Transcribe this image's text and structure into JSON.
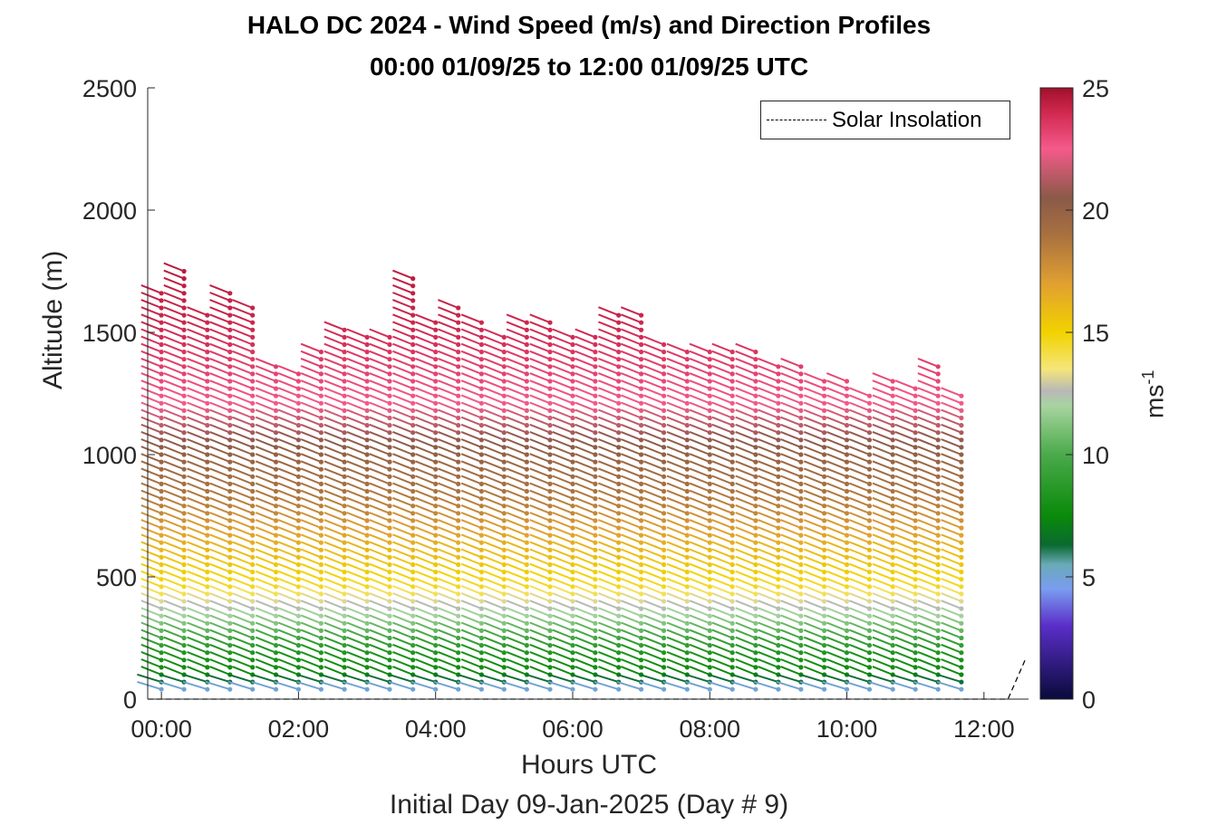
{
  "title_line1": "HALO DC 2024 - Wind Speed (m/s) and Direction Profiles",
  "title_line2": "00:00 01/09/25 to 12:00 01/09/25  UTC",
  "xlabel": "Hours UTC",
  "subtitle": "Initial Day 09-Jan-2025 (Day # 9)",
  "ylabel": "Altitude (m)",
  "legend_label": "Solar Insolation",
  "colorbar": {
    "label": "ms",
    "label_exponent": "-1",
    "ticks": [
      "0",
      "5",
      "10",
      "15",
      "20",
      "25"
    ],
    "range": [
      0,
      25
    ],
    "stops": [
      {
        "v": 0,
        "c": "#0a0a3a"
      },
      {
        "v": 3,
        "c": "#5a2ec8"
      },
      {
        "v": 4.5,
        "c": "#7a9cf0"
      },
      {
        "v": 5.5,
        "c": "#6aaab8"
      },
      {
        "v": 6.3,
        "c": "#0a6a30"
      },
      {
        "v": 7.5,
        "c": "#0a8a0a"
      },
      {
        "v": 10,
        "c": "#4aaa4a"
      },
      {
        "v": 12,
        "c": "#a8d4a0"
      },
      {
        "v": 12.6,
        "c": "#b8b8b8"
      },
      {
        "v": 13.5,
        "c": "#f4e67a"
      },
      {
        "v": 15,
        "c": "#f2d200"
      },
      {
        "v": 17,
        "c": "#e0a030"
      },
      {
        "v": 19,
        "c": "#a87040"
      },
      {
        "v": 20.5,
        "c": "#8a5a48"
      },
      {
        "v": 22.5,
        "c": "#f45a8a"
      },
      {
        "v": 24,
        "c": "#d02850"
      },
      {
        "v": 25,
        "c": "#a0102a"
      }
    ]
  },
  "chart_data": {
    "type": "scatter",
    "title": "HALO DC 2024 - Wind Speed (m/s) and Direction Profiles",
    "xlabel": "Hours UTC",
    "ylabel": "Altitude (m)",
    "xlim": [
      -0.2,
      12.65
    ],
    "ylim": [
      0,
      2500
    ],
    "x_ticks": [
      "00:00",
      "02:00",
      "04:00",
      "06:00",
      "08:00",
      "10:00",
      "12:00"
    ],
    "x_tick_values": [
      0,
      2,
      4,
      6,
      8,
      10,
      12
    ],
    "y_ticks": [
      "0",
      "500",
      "1000",
      "1500",
      "2000",
      "2500"
    ],
    "y_tick_values": [
      0,
      500,
      1000,
      1500,
      2000,
      2500
    ],
    "grid": false,
    "legend_position": "top-right",
    "altitude_step_m": 30,
    "speed_profile_ms": [
      {
        "alt": 40,
        "speed": 5
      },
      {
        "alt": 100,
        "speed": 7.5
      },
      {
        "alt": 200,
        "speed": 8.5
      },
      {
        "alt": 300,
        "speed": 11
      },
      {
        "alt": 400,
        "speed": 13.2
      },
      {
        "alt": 450,
        "speed": 14.5
      },
      {
        "alt": 600,
        "speed": 16
      },
      {
        "alt": 800,
        "speed": 18.5
      },
      {
        "alt": 1000,
        "speed": 20
      },
      {
        "alt": 1200,
        "speed": 22.5
      },
      {
        "alt": 1500,
        "speed": 24
      },
      {
        "alt": 1750,
        "speed": 24.5
      }
    ],
    "profiles": [
      {
        "t": 0.0,
        "top": 1680
      },
      {
        "t": 0.33,
        "top": 1760
      },
      {
        "t": 0.67,
        "top": 1590
      },
      {
        "t": 1.0,
        "top": 1680
      },
      {
        "t": 1.33,
        "top": 1620
      },
      {
        "t": 1.67,
        "top": 1370
      },
      {
        "t": 2.0,
        "top": 1350
      },
      {
        "t": 2.33,
        "top": 1430
      },
      {
        "t": 2.67,
        "top": 1520
      },
      {
        "t": 3.0,
        "top": 1480
      },
      {
        "t": 3.33,
        "top": 1500
      },
      {
        "t": 3.67,
        "top": 1740
      },
      {
        "t": 4.0,
        "top": 1560
      },
      {
        "t": 4.33,
        "top": 1600
      },
      {
        "t": 4.67,
        "top": 1560
      },
      {
        "t": 5.0,
        "top": 1500
      },
      {
        "t": 5.33,
        "top": 1540
      },
      {
        "t": 5.67,
        "top": 1560
      },
      {
        "t": 6.0,
        "top": 1480
      },
      {
        "t": 6.33,
        "top": 1480
      },
      {
        "t": 6.67,
        "top": 1570
      },
      {
        "t": 7.0,
        "top": 1570
      },
      {
        "t": 7.33,
        "top": 1450
      },
      {
        "t": 7.67,
        "top": 1440
      },
      {
        "t": 8.0,
        "top": 1440
      },
      {
        "t": 8.33,
        "top": 1440
      },
      {
        "t": 8.67,
        "top": 1420
      },
      {
        "t": 9.0,
        "top": 1370
      },
      {
        "t": 9.33,
        "top": 1360
      },
      {
        "t": 9.67,
        "top": 1300
      },
      {
        "t": 10.0,
        "top": 1310
      },
      {
        "t": 10.33,
        "top": 1250
      },
      {
        "t": 10.67,
        "top": 1320
      },
      {
        "t": 11.0,
        "top": 1270
      },
      {
        "t": 11.33,
        "top": 1360
      },
      {
        "t": 11.67,
        "top": 1260
      }
    ],
    "insolation_line": [
      {
        "t": -0.2,
        "v": 0
      },
      {
        "t": 12.35,
        "v": 0
      },
      {
        "t": 12.6,
        "v": 160
      }
    ]
  }
}
